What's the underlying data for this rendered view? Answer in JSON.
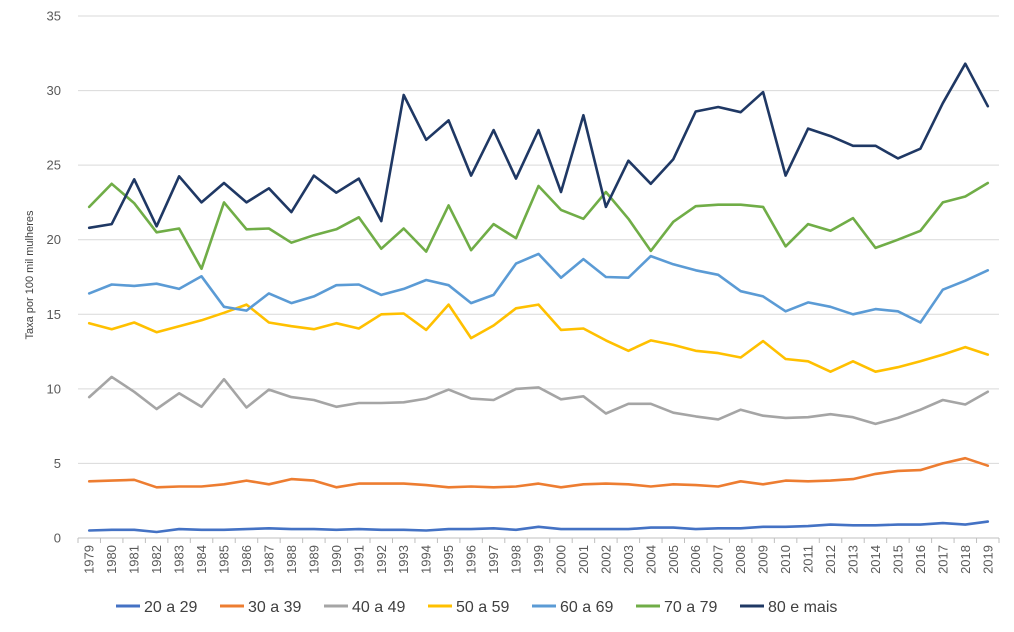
{
  "chart_data": {
    "type": "line",
    "title": "",
    "xlabel": "",
    "ylabel": "Taxa por 100 mil mulheres",
    "ylim": [
      0,
      35
    ],
    "yticks": [
      0,
      5,
      10,
      15,
      20,
      25,
      30,
      35
    ],
    "grid": "horizontal",
    "legend_position": "bottom",
    "x": [
      "1979",
      "1980",
      "1981",
      "1982",
      "1983",
      "1984",
      "1985",
      "1986",
      "1987",
      "1988",
      "1989",
      "1990",
      "1991",
      "1992",
      "1993",
      "1994",
      "1995",
      "1996",
      "1997",
      "1998",
      "1999",
      "2000",
      "2001",
      "2002",
      "2003",
      "2004",
      "2005",
      "2006",
      "2007",
      "2008",
      "2009",
      "2010",
      "2011",
      "2012",
      "2013",
      "2014",
      "2015",
      "2016",
      "2017",
      "2018",
      "2019"
    ],
    "series": [
      {
        "name": "20 a 29",
        "color": "#4472C4",
        "values": [
          0.5,
          0.55,
          0.55,
          0.4,
          0.6,
          0.55,
          0.55,
          0.6,
          0.65,
          0.6,
          0.6,
          0.55,
          0.6,
          0.55,
          0.55,
          0.5,
          0.6,
          0.6,
          0.65,
          0.55,
          0.75,
          0.6,
          0.6,
          0.6,
          0.6,
          0.7,
          0.7,
          0.6,
          0.65,
          0.65,
          0.75,
          0.75,
          0.8,
          0.9,
          0.85,
          0.85,
          0.9,
          0.9,
          1.0,
          0.9,
          1.1
        ]
      },
      {
        "name": "30 a 39",
        "color": "#ED7D31",
        "values": [
          3.8,
          3.85,
          3.9,
          3.4,
          3.45,
          3.45,
          3.6,
          3.85,
          3.6,
          3.95,
          3.85,
          3.4,
          3.65,
          3.65,
          3.65,
          3.55,
          3.4,
          3.45,
          3.4,
          3.45,
          3.65,
          3.4,
          3.6,
          3.65,
          3.6,
          3.45,
          3.6,
          3.55,
          3.45,
          3.8,
          3.6,
          3.85,
          3.8,
          3.85,
          3.95,
          4.3,
          4.5,
          4.55,
          5.0,
          5.35,
          4.85
        ]
      },
      {
        "name": "40 a 49",
        "color": "#A5A5A5",
        "values": [
          9.45,
          10.8,
          9.8,
          8.65,
          9.7,
          8.8,
          10.65,
          8.75,
          9.95,
          9.45,
          9.25,
          8.8,
          9.05,
          9.05,
          9.1,
          9.35,
          9.95,
          9.35,
          9.25,
          10.0,
          10.1,
          9.3,
          9.5,
          8.35,
          9.0,
          9.0,
          8.4,
          8.15,
          7.95,
          8.6,
          8.2,
          8.05,
          8.1,
          8.3,
          8.1,
          7.65,
          8.05,
          8.6,
          9.25,
          8.95,
          9.8
        ]
      },
      {
        "name": "50 a 59",
        "color": "#FFC000",
        "values": [
          14.4,
          14.0,
          14.45,
          13.8,
          14.2,
          14.6,
          15.1,
          15.65,
          14.45,
          14.2,
          14.0,
          14.4,
          14.05,
          15.0,
          15.05,
          13.95,
          15.65,
          13.4,
          14.25,
          15.4,
          15.65,
          13.95,
          14.05,
          13.25,
          12.55,
          13.25,
          12.95,
          12.55,
          12.4,
          12.1,
          13.2,
          12.0,
          11.85,
          11.15,
          11.85,
          11.15,
          11.45,
          11.85,
          12.3,
          12.8,
          12.3
        ]
      },
      {
        "name": "60 a 69",
        "color": "#5B9BD5",
        "values": [
          16.4,
          17.0,
          16.9,
          17.05,
          16.7,
          17.55,
          15.5,
          15.25,
          16.4,
          15.75,
          16.2,
          16.95,
          17.0,
          16.3,
          16.7,
          17.3,
          16.95,
          15.75,
          16.3,
          18.4,
          19.05,
          17.45,
          18.7,
          17.5,
          17.45,
          18.9,
          18.35,
          17.95,
          17.65,
          16.55,
          16.2,
          15.2,
          15.8,
          15.5,
          15.0,
          15.35,
          15.2,
          14.45,
          16.65,
          17.25,
          17.95
        ]
      },
      {
        "name": "70 a 79",
        "color": "#70AD47",
        "values": [
          22.2,
          23.75,
          22.45,
          20.5,
          20.75,
          18.05,
          22.5,
          20.7,
          20.75,
          19.8,
          20.3,
          20.7,
          21.5,
          19.4,
          20.75,
          19.2,
          22.3,
          19.3,
          21.05,
          20.1,
          23.6,
          22.0,
          21.4,
          23.2,
          21.4,
          19.25,
          21.2,
          22.25,
          22.35,
          22.35,
          22.2,
          19.55,
          21.05,
          20.6,
          21.45,
          19.45,
          20.0,
          20.6,
          22.5,
          22.9,
          23.8
        ]
      },
      {
        "name": "80 e mais",
        "color": "#1F3864",
        "values": [
          20.8,
          21.05,
          24.05,
          20.9,
          24.25,
          22.5,
          23.8,
          22.5,
          23.45,
          21.85,
          24.3,
          23.15,
          24.1,
          21.25,
          29.7,
          26.7,
          28.0,
          24.3,
          27.35,
          24.1,
          27.35,
          23.2,
          28.35,
          22.2,
          25.3,
          23.75,
          25.4,
          28.6,
          28.9,
          28.55,
          29.9,
          24.3,
          27.45,
          26.95,
          26.3,
          26.3,
          25.45,
          26.1,
          29.15,
          31.8,
          28.95
        ]
      }
    ]
  }
}
